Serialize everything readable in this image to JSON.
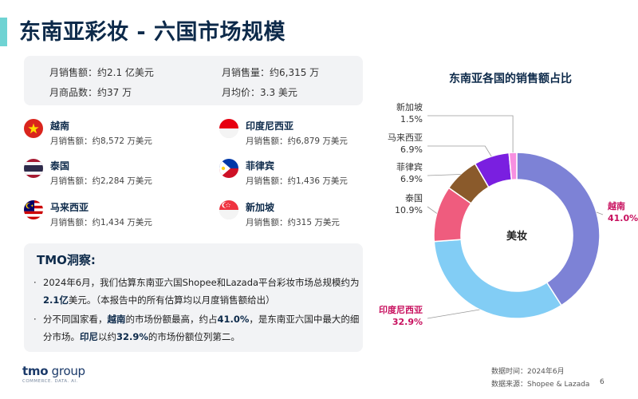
{
  "title": "东南亚彩妆 - 六国市场规模",
  "summary": {
    "monthly_sales": "月销售额：约2.1 亿美元",
    "monthly_volume": "月销售量：约6,315 万",
    "monthly_products": "月商品数：约37 万",
    "monthly_avg_price": "月均价：3.3 美元"
  },
  "countries": [
    {
      "name": "越南",
      "sales": "月销售额：约8,572 万美元"
    },
    {
      "name": "印度尼西亚",
      "sales": "月销售额：约6,879 万美元"
    },
    {
      "name": "泰国",
      "sales": "月销售额：约2,284 万美元"
    },
    {
      "name": "菲律宾",
      "sales": "月销售额：约1,436 万美元"
    },
    {
      "name": "马来西亚",
      "sales": "月销售额：约1,434 万美元"
    },
    {
      "name": "新加坡",
      "sales": "月销售额：约315 万美元"
    }
  ],
  "insight": {
    "title": "TMO洞察:",
    "b1": {
      "p1": "2024年6月，我们估算东南亚六国Shopee和Lazada平台彩妆市场总规模约为",
      "p2": "2.1亿",
      "p3": "美元。（本报告中的所有估算均以月度销售额给出）"
    },
    "b2": {
      "p1": "分不同国家看，",
      "p2": "越南",
      "p3": "的市场份额最高，约占",
      "p4": "41.0%",
      "p5": "，是东南亚六国中最大的细",
      "p6": "分市场。",
      "p7": "印尼",
      "p8": "以约",
      "p9": "32.9%",
      "p10": "的市场份额位列第二。"
    }
  },
  "chart_data": {
    "type": "pie",
    "title": "东南亚各国的销售额占比",
    "center_label": "美妆",
    "categories": [
      "越南",
      "印度尼西亚",
      "泰国",
      "菲律宾",
      "马来西亚",
      "新加坡"
    ],
    "values": [
      41.0,
      32.9,
      10.9,
      6.9,
      6.9,
      1.5
    ],
    "labels": [
      "41.0%",
      "32.9%",
      "10.9%",
      "6.9%",
      "6.9%",
      "1.5%"
    ],
    "colors": [
      "#7d82d6",
      "#82cdf5",
      "#ef5c7e",
      "#8a5a2b",
      "#7a1fe0",
      "#f78fe0"
    ],
    "highlight_color": "#c8115f",
    "highlight": [
      "越南",
      "印度尼西亚"
    ]
  },
  "logo": {
    "main": "tmo",
    "group": " group",
    "tagline": "COMMERCE. DATA. AI."
  },
  "footer": {
    "data_time": "数据时间：2024年6月",
    "data_source": "数据来源：Shopee & Lazada",
    "page": "6"
  }
}
